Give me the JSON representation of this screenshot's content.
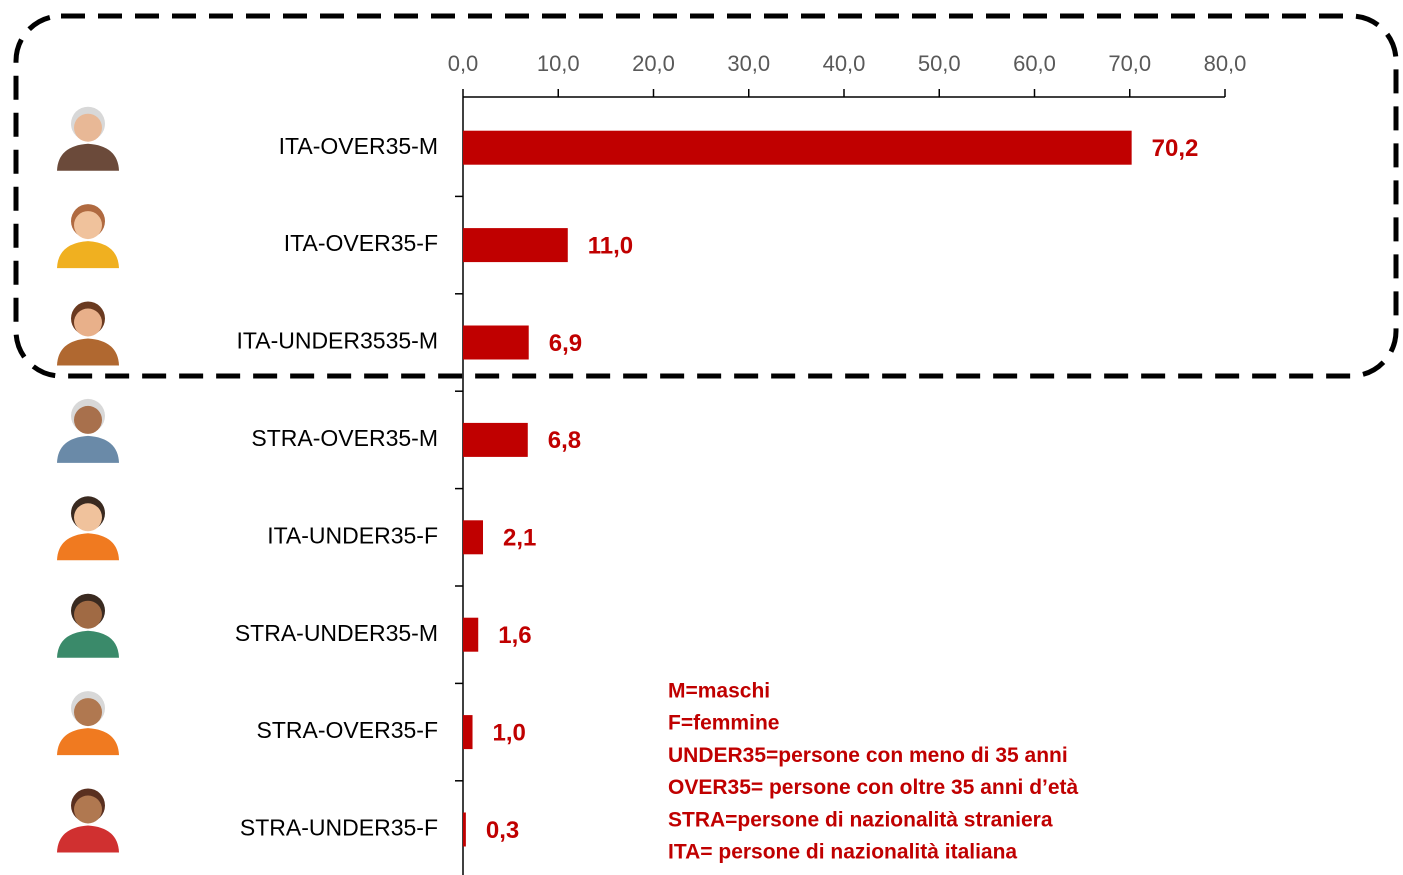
{
  "chart_data": {
    "type": "bar",
    "orientation": "horizontal",
    "categories": [
      "ITA-OVER35-M",
      "ITA-OVER35-F",
      "ITA-UNDER3535-M",
      "STRA-OVER35-M",
      "ITA-UNDER35-F",
      "STRA-UNDER35-M",
      "STRA-OVER35-F",
      "STRA-UNDER35-F"
    ],
    "values": [
      70.2,
      11.0,
      6.9,
      6.8,
      2.1,
      1.6,
      1.0,
      0.3
    ],
    "value_labels": [
      "70,2",
      "11,0",
      "6,9",
      "6,8",
      "2,1",
      "1,6",
      "1,0",
      "0,3"
    ],
    "color": "#c00000",
    "xlim": [
      0,
      80
    ],
    "xticks": [
      {
        "value": 0,
        "label": "0,0"
      },
      {
        "value": 10,
        "label": "10,0"
      },
      {
        "value": 20,
        "label": "20,0"
      },
      {
        "value": 30,
        "label": "30,0"
      },
      {
        "value": 40,
        "label": "40,0"
      },
      {
        "value": 50,
        "label": "50,0"
      },
      {
        "value": 60,
        "label": "60,0"
      },
      {
        "value": 70,
        "label": "70,0"
      },
      {
        "value": 80,
        "label": "80,0"
      }
    ],
    "annotations": [
      "M=maschi",
      "F=femmine",
      "UNDER35=persone con meno di 35 anni",
      "OVER35= persone con oltre 35 anni d’età",
      "STRA=persone di nazionalità straniera",
      "ITA= persone di nazionalità italiana"
    ]
  }
}
